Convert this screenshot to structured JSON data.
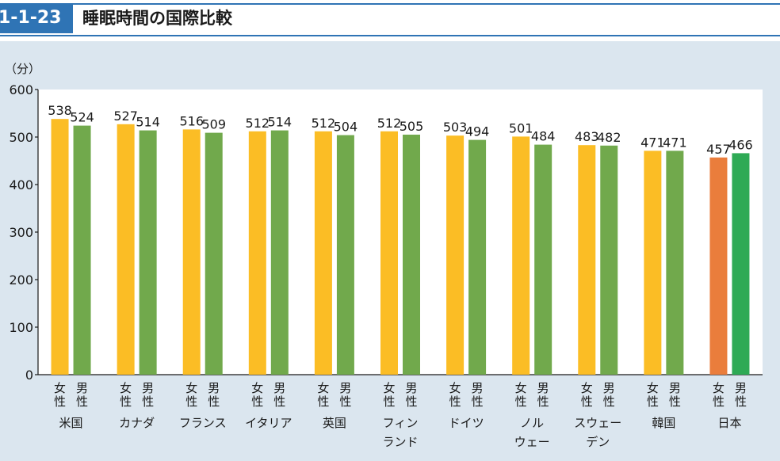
{
  "header": {
    "figure_number": "1-1-23",
    "title": "睡眠時間の国際比較"
  },
  "colors": {
    "female": "#fbbd25",
    "male": "#71a94c",
    "japan_female": "#ea7d3c",
    "japan_male": "#2eaa55",
    "accent": "#2f74b5",
    "panel": "#dbe6ef"
  },
  "chart_data": {
    "type": "bar",
    "unit_label": "（分）",
    "ylim": [
      0,
      600
    ],
    "yticks": [
      0,
      100,
      200,
      300,
      400,
      500,
      600
    ],
    "sex_labels": [
      "女性",
      "男性"
    ],
    "categories": [
      {
        "name": [
          "米国"
        ],
        "female": 538,
        "male": 524
      },
      {
        "name": [
          "カナダ"
        ],
        "female": 527,
        "male": 514
      },
      {
        "name": [
          "フランス"
        ],
        "female": 516,
        "male": 509
      },
      {
        "name": [
          "イタリア"
        ],
        "female": 512,
        "male": 514
      },
      {
        "name": [
          "英国"
        ],
        "female": 512,
        "male": 504
      },
      {
        "name": [
          "フィン",
          "ランド"
        ],
        "female": 512,
        "male": 505
      },
      {
        "name": [
          "ドイツ"
        ],
        "female": 503,
        "male": 494
      },
      {
        "name": [
          "ノル",
          "ウェー"
        ],
        "female": 501,
        "male": 484
      },
      {
        "name": [
          "スウェー",
          "デン"
        ],
        "female": 483,
        "male": 482
      },
      {
        "name": [
          "韓国"
        ],
        "female": 471,
        "male": 471
      },
      {
        "name": [
          "日本"
        ],
        "female": 457,
        "male": 466
      }
    ]
  }
}
